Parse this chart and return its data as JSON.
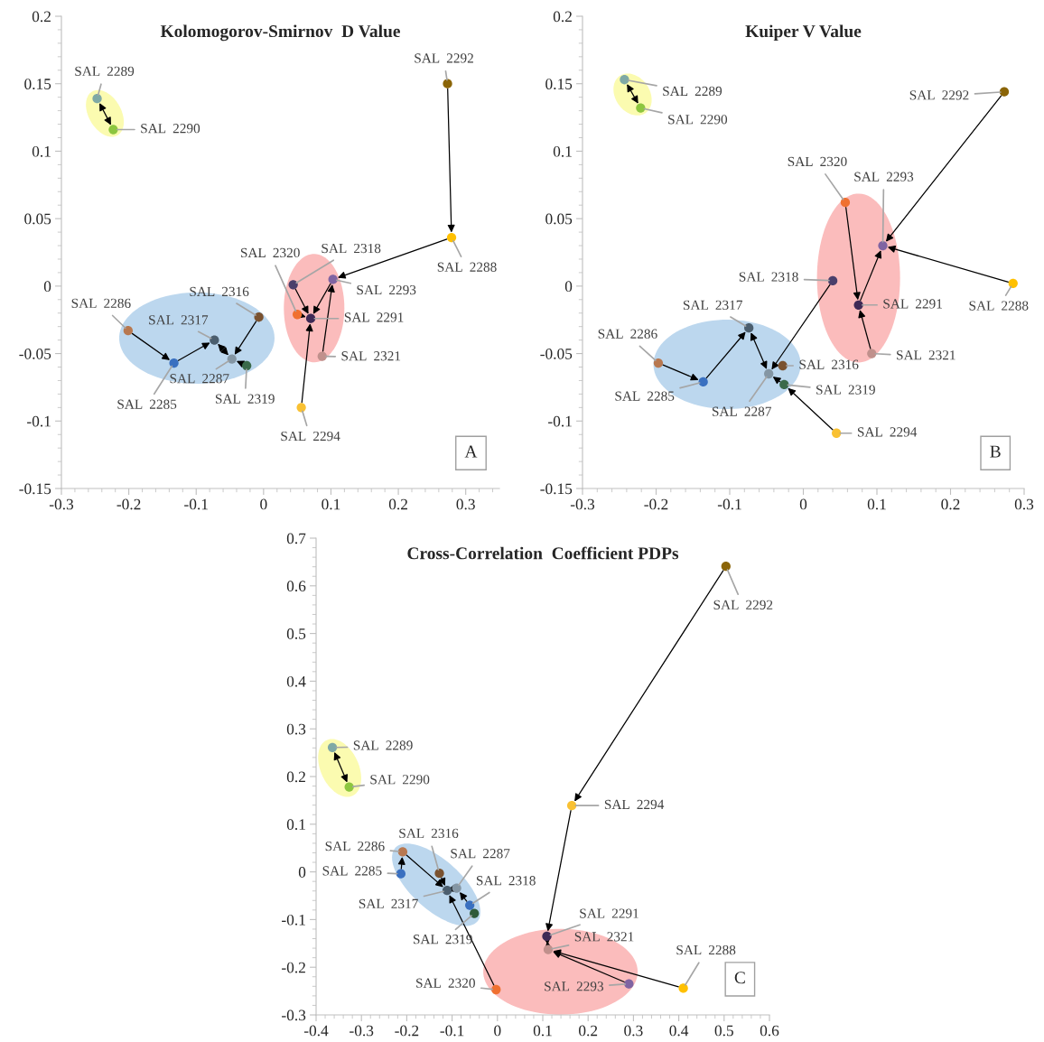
{
  "chart_data": [
    {
      "type": "scatter",
      "title": "Kolomogorov-Smirnov  D Value",
      "grid": false,
      "xlim": [
        -0.3,
        0.35
      ],
      "xticks": [
        -0.3,
        -0.2,
        -0.1,
        0,
        0.1,
        0.2,
        0.3
      ],
      "ylim": [
        -0.15,
        0.2
      ],
      "yticks": [
        -0.15,
        -0.1,
        -0.05,
        0,
        0.05,
        0.1,
        0.15,
        0.2
      ],
      "series": [
        {
          "marker": "circle",
          "x": [
            -0.247,
            -0.223,
            0.273,
            0.279,
            0.103,
            0.044,
            0.05,
            0.07,
            0.087,
            0.056,
            -0.007,
            -0.201,
            -0.073,
            -0.133,
            -0.047,
            -0.025
          ],
          "values": [
            0.139,
            0.116,
            0.15,
            0.036,
            0.005,
            0.001,
            -0.021,
            -0.024,
            -0.052,
            -0.09,
            -0.023,
            -0.033,
            -0.04,
            -0.057,
            -0.054,
            -0.059
          ],
          "colors": [
            "#7fa9a5",
            "#8dc63f",
            "#8b6508",
            "#ffc000",
            "#8064a2",
            "#4a3f6b",
            "#f07030",
            "#3f2a56",
            "#c0908c",
            "#f9c133",
            "#7a5230",
            "#b87850",
            "#4b5e6e",
            "#3a70c0",
            "#8496a4",
            "#3a6a4a"
          ]
        }
      ],
      "annotations": [
        {
          "text": "SAL  2289",
          "x": -0.247,
          "y": 0.139
        },
        {
          "text": "SAL  2290",
          "x": -0.223,
          "y": 0.116
        },
        {
          "text": "SAL  2292",
          "x": 0.273,
          "y": 0.15
        },
        {
          "text": "SAL  2288",
          "x": 0.279,
          "y": 0.036
        },
        {
          "text": "SAL  2293",
          "x": 0.103,
          "y": 0.005
        },
        {
          "text": "SAL  2318",
          "x": 0.044,
          "y": 0.001
        },
        {
          "text": "SAL  2320",
          "x": 0.05,
          "y": -0.021
        },
        {
          "text": "SAL  2291",
          "x": 0.07,
          "y": -0.024
        },
        {
          "text": "SAL  2321",
          "x": 0.087,
          "y": -0.052
        },
        {
          "text": "SAL  2294",
          "x": 0.056,
          "y": -0.09
        },
        {
          "text": "SAL  2316",
          "x": -0.007,
          "y": -0.023
        },
        {
          "text": "SAL  2286",
          "x": -0.201,
          "y": -0.033
        },
        {
          "text": "SAL  2317",
          "x": -0.073,
          "y": -0.04
        },
        {
          "text": "SAL  2285",
          "x": -0.133,
          "y": -0.057
        },
        {
          "text": "SAL  2287",
          "x": -0.047,
          "y": -0.054
        },
        {
          "text": "SAL  2319",
          "x": -0.025,
          "y": -0.059
        },
        "A"
      ]
    },
    {
      "type": "scatter",
      "title": "Kuiper V Value",
      "grid": false,
      "xlim": [
        -0.3,
        0.3
      ],
      "xticks": [
        -0.3,
        -0.2,
        -0.1,
        0,
        0.1,
        0.2,
        0.3
      ],
      "ylim": [
        -0.15,
        0.2
      ],
      "yticks": [
        -0.15,
        -0.1,
        -0.05,
        0,
        0.05,
        0.1,
        0.15,
        0.2
      ],
      "series": [
        {
          "marker": "circle",
          "x": [
            -0.243,
            -0.221,
            0.273,
            0.285,
            0.108,
            0.04,
            0.057,
            0.075,
            0.093,
            0.045,
            -0.028,
            -0.197,
            -0.074,
            -0.136,
            -0.047,
            -0.026
          ],
          "values": [
            0.153,
            0.132,
            0.144,
            0.002,
            0.03,
            0.004,
            0.062,
            -0.014,
            -0.05,
            -0.109,
            -0.059,
            -0.057,
            -0.031,
            -0.071,
            -0.065,
            -0.073
          ],
          "colors": [
            "#7fa9a5",
            "#8dc63f",
            "#8b6508",
            "#ffc000",
            "#8064a2",
            "#4a3f6b",
            "#f07030",
            "#3f2a56",
            "#c0908c",
            "#f9c133",
            "#7a5230",
            "#b87850",
            "#4b5e6e",
            "#3a70c0",
            "#8496a4",
            "#3a6a4a"
          ]
        }
      ],
      "annotations": [
        {
          "text": "SAL  2289",
          "x": -0.243,
          "y": 0.153
        },
        {
          "text": "SAL  2290",
          "x": -0.221,
          "y": 0.132
        },
        {
          "text": "SAL  2292",
          "x": 0.273,
          "y": 0.144
        },
        {
          "text": "SAL  2288",
          "x": 0.285,
          "y": 0.002
        },
        {
          "text": "SAL  2293",
          "x": 0.108,
          "y": 0.03
        },
        {
          "text": "SAL  2318",
          "x": 0.04,
          "y": 0.004
        },
        {
          "text": "SAL  2320",
          "x": 0.057,
          "y": 0.062
        },
        {
          "text": "SAL  2291",
          "x": 0.075,
          "y": -0.014
        },
        {
          "text": "SAL  2321",
          "x": 0.093,
          "y": -0.05
        },
        {
          "text": "SAL  2294",
          "x": 0.045,
          "y": -0.109
        },
        {
          "text": "SAL  2316",
          "x": -0.028,
          "y": -0.059
        },
        {
          "text": "SAL  2286",
          "x": -0.197,
          "y": -0.057
        },
        {
          "text": "SAL  2317",
          "x": -0.074,
          "y": -0.031
        },
        {
          "text": "SAL  2285",
          "x": -0.136,
          "y": -0.071
        },
        {
          "text": "SAL  2287",
          "x": -0.047,
          "y": -0.065
        },
        {
          "text": "SAL  2319",
          "x": -0.026,
          "y": -0.073
        },
        "B"
      ]
    },
    {
      "type": "scatter",
      "title": "Cross-Correlation  Coefficient PDPs",
      "grid": false,
      "xlim": [
        -0.4,
        0.6
      ],
      "xticks": [
        -0.4,
        -0.3,
        -0.2,
        -0.1,
        0,
        0.1,
        0.2,
        0.3,
        0.4,
        0.5,
        0.6
      ],
      "ylim": [
        -0.3,
        0.7
      ],
      "yticks": [
        -0.3,
        -0.2,
        -0.1,
        0,
        0.1,
        0.2,
        0.3,
        0.4,
        0.5,
        0.6,
        0.7
      ],
      "series": [
        {
          "marker": "circle",
          "x": [
            -0.364,
            -0.327,
            0.504,
            0.41,
            0.29,
            -0.061,
            -0.003,
            0.109,
            0.112,
            0.164,
            -0.128,
            -0.209,
            -0.111,
            -0.213,
            -0.09,
            -0.051
          ],
          "values": [
            0.261,
            0.178,
            0.641,
            -0.244,
            -0.235,
            -0.07,
            -0.247,
            -0.135,
            -0.163,
            0.139,
            -0.003,
            0.042,
            -0.039,
            -0.004,
            -0.034,
            -0.087
          ],
          "colors": [
            "#7fa9a5",
            "#8dc63f",
            "#8b6508",
            "#ffc000",
            "#8064a2",
            "#3a70c0",
            "#f07030",
            "#3f2a56",
            "#c0908c",
            "#f9c133",
            "#7a5230",
            "#b87850",
            "#4b5e6e",
            "#3a70c0",
            "#8496a4",
            "#2f5a3a"
          ]
        }
      ],
      "annotations": [
        {
          "text": "SAL  2289",
          "x": -0.364,
          "y": 0.261
        },
        {
          "text": "SAL  2290",
          "x": -0.327,
          "y": 0.178
        },
        {
          "text": "SAL  2292",
          "x": 0.504,
          "y": 0.641
        },
        {
          "text": "SAL  2288",
          "x": 0.41,
          "y": -0.244
        },
        {
          "text": "SAL  2293",
          "x": 0.29,
          "y": -0.235
        },
        {
          "text": "SAL  2318",
          "x": -0.061,
          "y": -0.07
        },
        {
          "text": "SAL  2320",
          "x": -0.003,
          "y": -0.247
        },
        {
          "text": "SAL  2291",
          "x": 0.109,
          "y": -0.135
        },
        {
          "text": "SAL  2321",
          "x": 0.112,
          "y": -0.163
        },
        {
          "text": "SAL  2294",
          "x": 0.164,
          "y": 0.139
        },
        {
          "text": "SAL  2316",
          "x": -0.128,
          "y": -0.003
        },
        {
          "text": "SAL  2286",
          "x": -0.209,
          "y": 0.042
        },
        {
          "text": "SAL  2317",
          "x": -0.111,
          "y": -0.039
        },
        {
          "text": "SAL  2285",
          "x": -0.213,
          "y": -0.004
        },
        {
          "text": "SAL  2287",
          "x": -0.09,
          "y": -0.034
        },
        {
          "text": "SAL  2319",
          "x": -0.051,
          "y": -0.087
        },
        "C"
      ]
    }
  ]
}
